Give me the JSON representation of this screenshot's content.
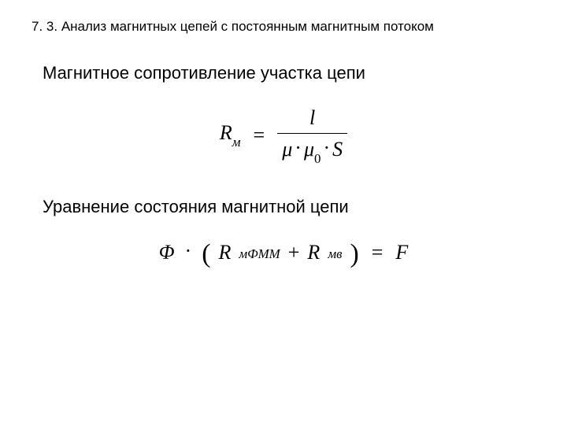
{
  "section": {
    "number": "7. 3.",
    "title": "Анализ магнитных цепей с постоянным магнитным потоком"
  },
  "paragraphs": {
    "p1": "Магнитное сопротивление участка цепи",
    "p2": "Уравнение состояния магнитной цепи"
  },
  "formula1": {
    "lhs_symbol": "R",
    "lhs_sub": "м",
    "eq": "=",
    "numerator": "l",
    "den_mu": "μ",
    "den_dot1": "·",
    "den_mu0": "μ",
    "den_mu0_sub": "0",
    "den_dot2": "·",
    "den_S": "S",
    "fontsize": 26,
    "color": "#000000"
  },
  "formula2": {
    "phi": "Φ",
    "dot1": "·",
    "lparen": "(",
    "R1": "R",
    "R1_sub": "мФММ",
    "plus": " + ",
    "R2": "R",
    "R2_sub": "мв",
    "rparen": ")",
    "eq": "=",
    "F": "F",
    "fontsize": 26,
    "color": "#000000"
  },
  "style": {
    "page_bg": "#ffffff",
    "text_color": "#000000",
    "section_title_fontsize": 17,
    "body_fontsize": 22,
    "formula_font": "Times New Roman",
    "body_font": "Arial"
  }
}
